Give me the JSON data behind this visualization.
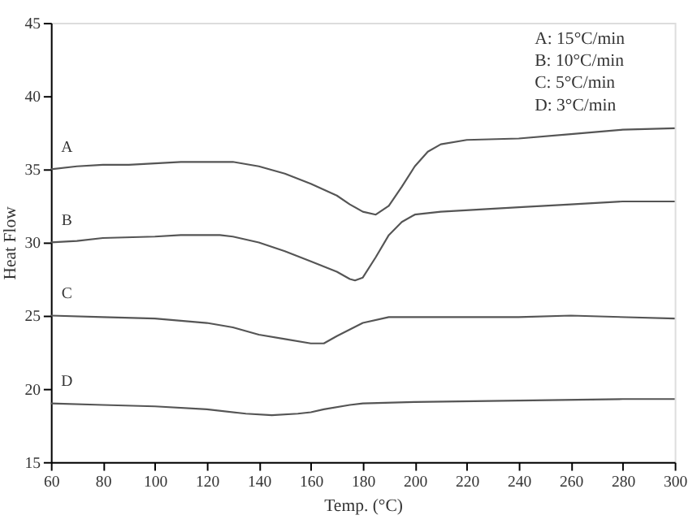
{
  "chart_data": {
    "type": "line",
    "xlabel": "Temp. (°C)",
    "ylabel": "Heat Flow",
    "xlim": [
      60,
      300
    ],
    "ylim": [
      15,
      45
    ],
    "xticks": [
      60,
      80,
      100,
      120,
      140,
      160,
      180,
      200,
      220,
      240,
      260,
      280,
      300
    ],
    "yticks": [
      15,
      20,
      25,
      30,
      35,
      40,
      45
    ],
    "grid": false,
    "marker": "none",
    "line_style": "solid",
    "annotations": [
      "A: 15°C/min",
      "B: 10°C/min",
      "C: 5°C/min",
      "D: 3°C/min"
    ],
    "series": [
      {
        "name": "A",
        "color": "#555555",
        "x": [
          60,
          70,
          80,
          90,
          100,
          110,
          120,
          130,
          140,
          150,
          160,
          170,
          175,
          180,
          185,
          190,
          195,
          200,
          205,
          210,
          220,
          240,
          260,
          280,
          300
        ],
        "values": [
          35,
          35.2,
          35.3,
          35.3,
          35.4,
          35.5,
          35.5,
          35.5,
          35.2,
          34.7,
          34.0,
          33.2,
          32.6,
          32.1,
          31.9,
          32.5,
          33.8,
          35.2,
          36.2,
          36.7,
          37.0,
          37.1,
          37.4,
          37.7,
          37.8
        ]
      },
      {
        "name": "B",
        "color": "#555555",
        "x": [
          60,
          70,
          80,
          100,
          110,
          125,
          130,
          140,
          150,
          160,
          170,
          175,
          177,
          180,
          185,
          190,
          195,
          200,
          210,
          240,
          260,
          280,
          300
        ],
        "values": [
          30,
          30.1,
          30.3,
          30.4,
          30.5,
          30.5,
          30.4,
          30.0,
          29.4,
          28.7,
          28.0,
          27.5,
          27.4,
          27.6,
          29.0,
          30.5,
          31.4,
          31.9,
          32.1,
          32.4,
          32.6,
          32.8,
          32.8
        ]
      },
      {
        "name": "C",
        "color": "#555555",
        "x": [
          60,
          80,
          100,
          120,
          130,
          140,
          150,
          160,
          165,
          170,
          180,
          190,
          200,
          240,
          260,
          300
        ],
        "values": [
          25,
          24.9,
          24.8,
          24.5,
          24.2,
          23.7,
          23.4,
          23.1,
          23.1,
          23.6,
          24.5,
          24.9,
          24.9,
          24.9,
          25.0,
          24.8
        ]
      },
      {
        "name": "D",
        "color": "#555555",
        "x": [
          60,
          80,
          100,
          120,
          135,
          145,
          155,
          160,
          165,
          175,
          180,
          200,
          240,
          280,
          300
        ],
        "values": [
          19,
          18.9,
          18.8,
          18.6,
          18.3,
          18.2,
          18.3,
          18.4,
          18.6,
          18.9,
          19.0,
          19.1,
          19.2,
          19.3,
          19.3
        ]
      }
    ]
  }
}
